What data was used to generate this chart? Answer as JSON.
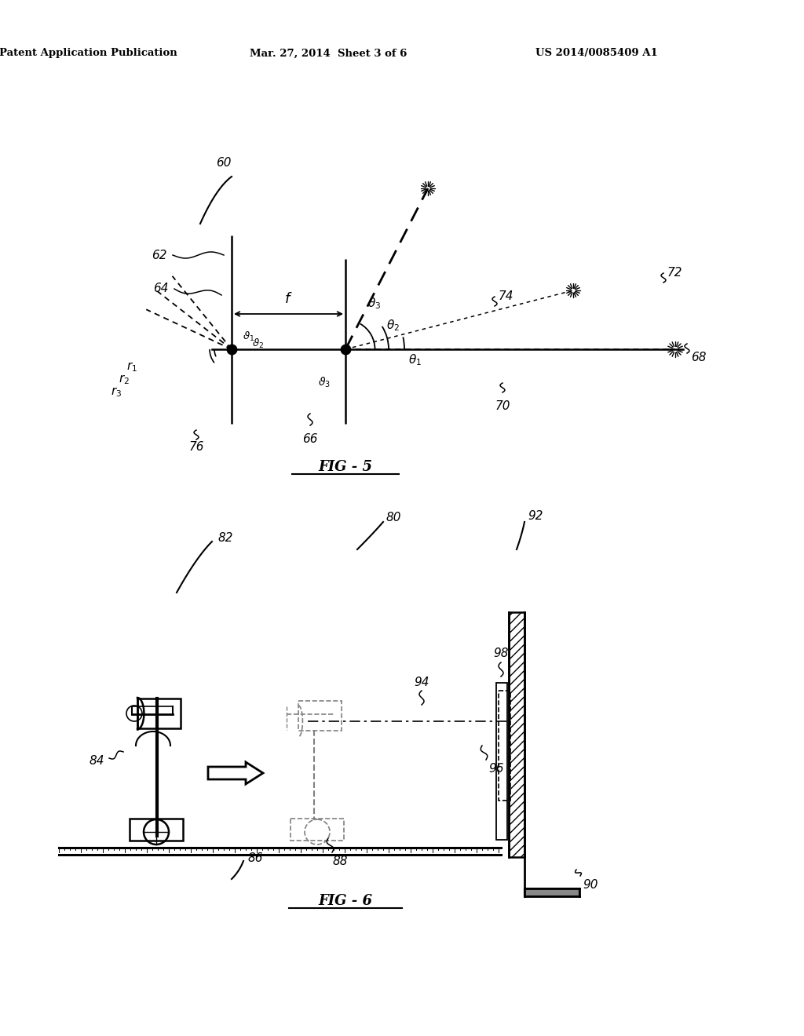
{
  "title_left": "Patent Application Publication",
  "title_mid": "Mar. 27, 2014  Sheet 3 of 6",
  "title_right": "US 2014/0085409 A1",
  "fig5_label": "FIG - 5",
  "fig6_label": "FIG - 6",
  "bg_color": "#ffffff"
}
